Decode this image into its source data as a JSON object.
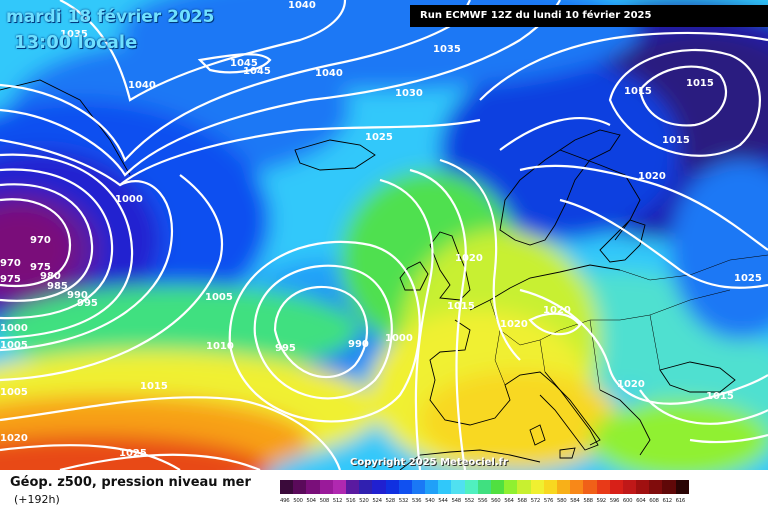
{
  "header": {
    "date_line": "mardi 18 février 2025",
    "time_line": "13:00 locale",
    "run_info": "Run ECMWF 12Z du lundi 10 février 2025",
    "copyright": "Copyright 2025 Meteociel.fr"
  },
  "legend": {
    "title": "Géop. z500, pression niveau mer",
    "lead_time": "(+192h)",
    "scale_values": [
      "496",
      "500",
      "504",
      "508",
      "512",
      "516",
      "520",
      "524",
      "528",
      "532",
      "536",
      "540",
      "544",
      "548",
      "552",
      "556",
      "560",
      "564",
      "568",
      "572",
      "576",
      "580",
      "584",
      "588",
      "592",
      "596",
      "600",
      "604",
      "608",
      "612",
      "616"
    ],
    "scale_colors": [
      "#3a0a3a",
      "#5a0a5a",
      "#7a0f7a",
      "#9a1a9a",
      "#b028b0",
      "#5a1aa0",
      "#3020b0",
      "#2020d0",
      "#1030e0",
      "#1050f0",
      "#1a78f5",
      "#20a0f8",
      "#30c8fa",
      "#50e0f0",
      "#50f0c0",
      "#40e080",
      "#50e040",
      "#90f030",
      "#c8f030",
      "#f0f030",
      "#f8d820",
      "#f8b018",
      "#f88818",
      "#f06018",
      "#e83a18",
      "#d82018",
      "#c01818",
      "#a01010",
      "#800c0c",
      "#600808",
      "#2a0404"
    ]
  },
  "isobars": {
    "labels": [
      "1040",
      "1035",
      "1045",
      "1045",
      "1040",
      "1040",
      "1035",
      "1030",
      "1015",
      "1015",
      "1015",
      "1025",
      "1020",
      "1000",
      "970",
      "970",
      "975",
      "975",
      "980",
      "985",
      "990",
      "995",
      "1000",
      "1005",
      "1005",
      "995",
      "990",
      "1000",
      "1020",
      "1015",
      "1020",
      "1020",
      "1025",
      "1010",
      "1015",
      "1020",
      "1015",
      "1020",
      "1025",
      "1005"
    ]
  },
  "map": {
    "colors": {
      "deep_purple": "#5a0a5a",
      "dark_blue": "#1a1ab0",
      "blue": "#1040e0",
      "mid_blue": "#1a78f5",
      "cyan": "#30c8fa",
      "teal": "#50e0d0",
      "green": "#50e050",
      "yellow_green": "#b0f030",
      "yellow": "#f0f030",
      "orange": "#f8a018",
      "red_orange": "#e84818",
      "isobar": "#ffffff",
      "coastline": "#000000"
    }
  }
}
